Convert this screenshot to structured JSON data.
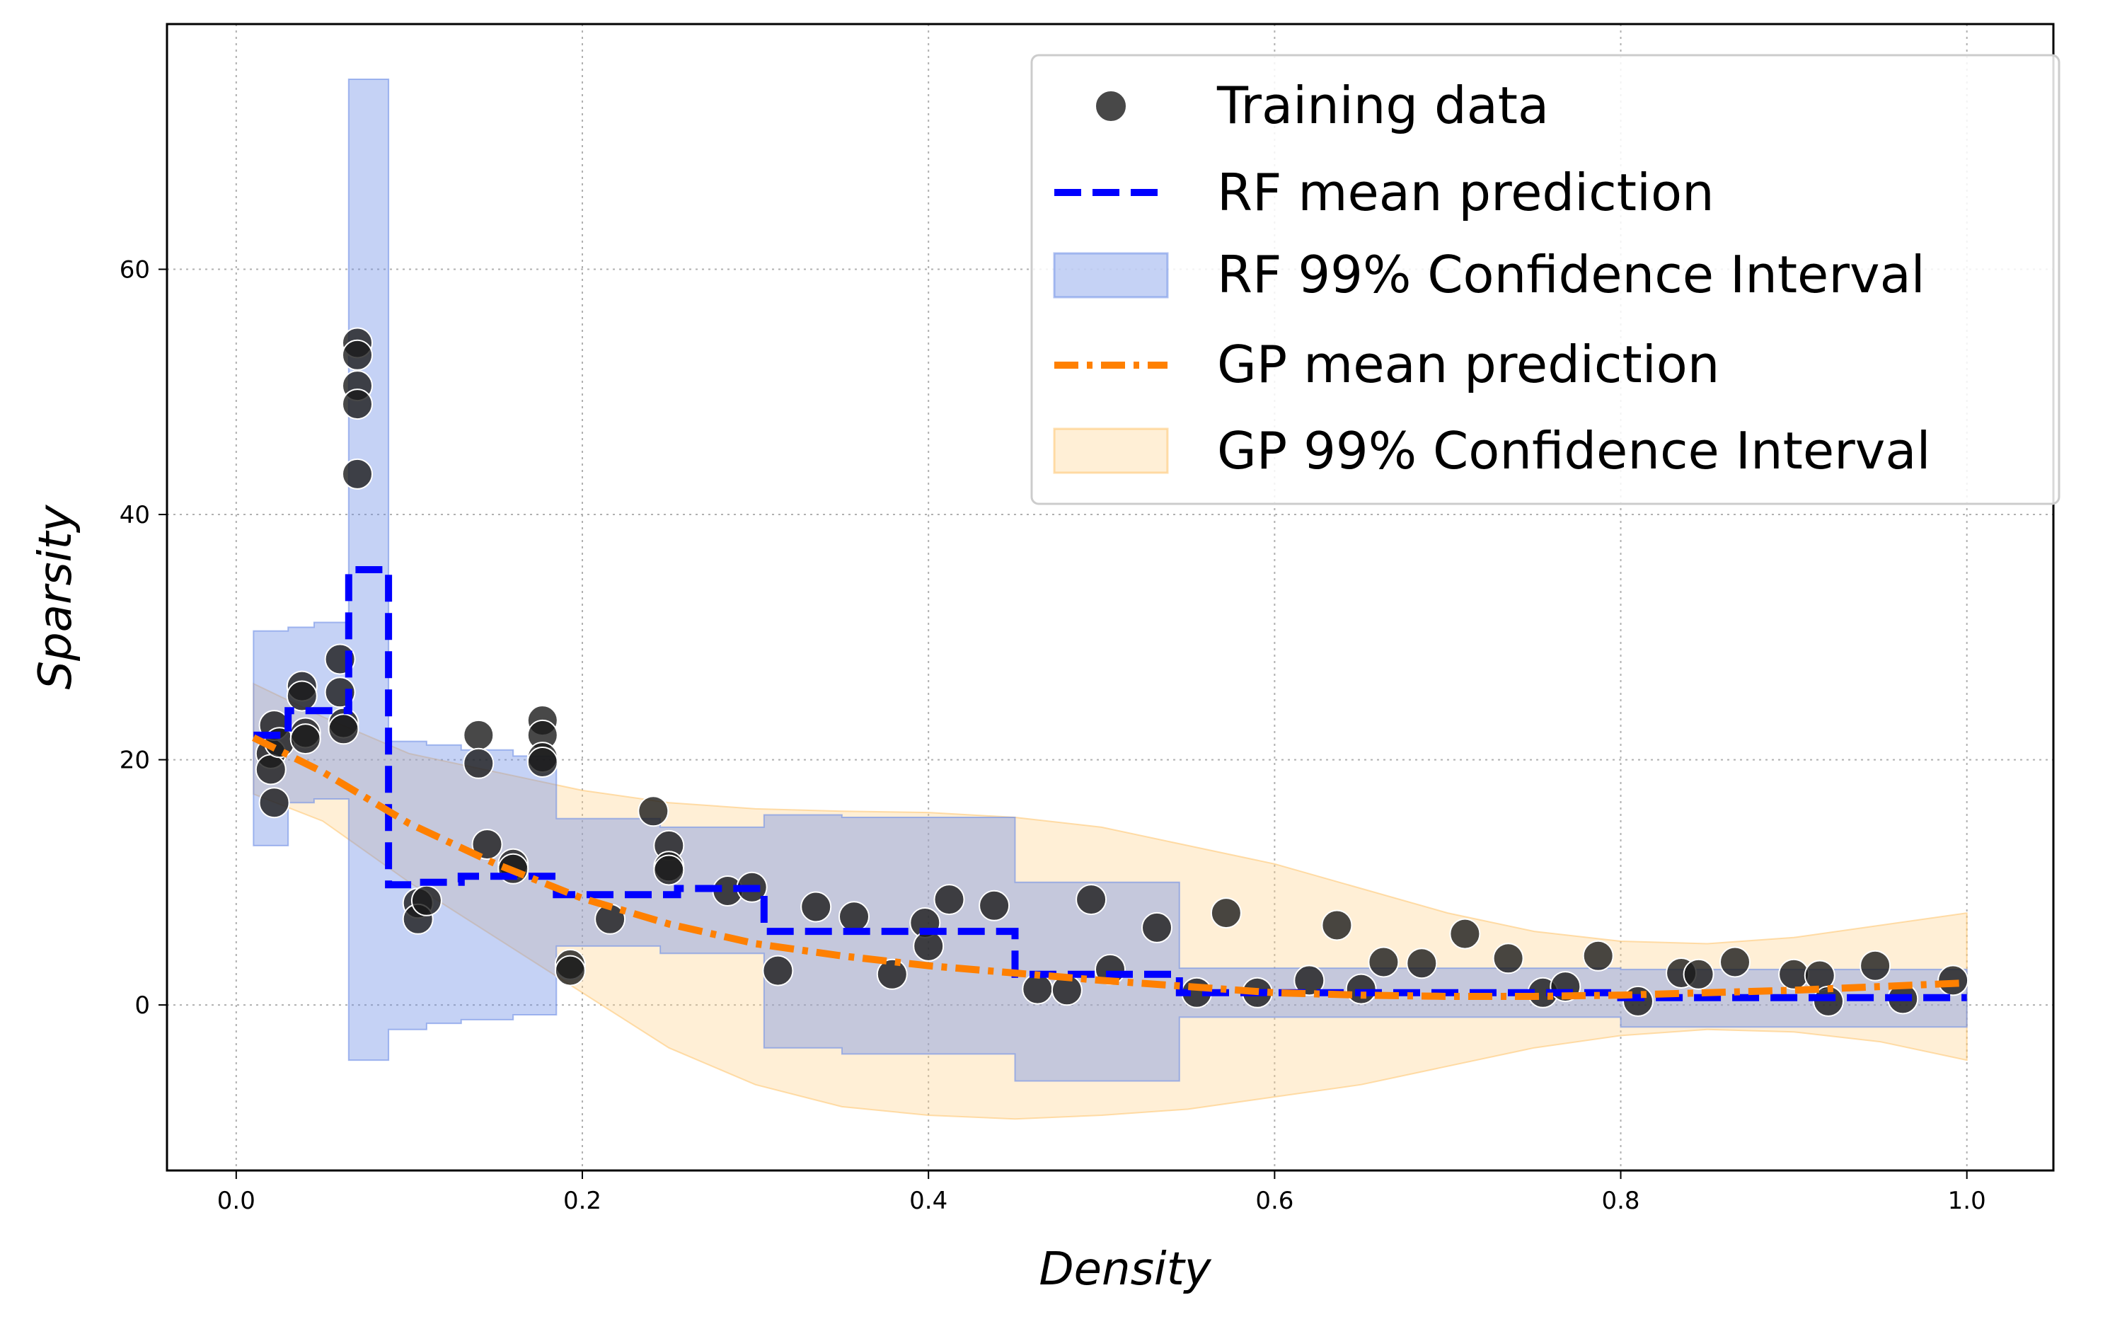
{
  "chart_data": {
    "type": "scatter",
    "xlabel": "Density",
    "ylabel": "Sparsity",
    "xlim": [
      -0.04,
      1.05
    ],
    "ylim": [
      -13.5,
      80
    ],
    "xticks": [
      "0.0",
      "0.2",
      "0.4",
      "0.6",
      "0.8",
      "1.0"
    ],
    "yticks": [
      "0",
      "20",
      "40",
      "60"
    ],
    "grid": true,
    "legend_position": "upper right",
    "legend": [
      "Training data",
      "RF mean prediction",
      "RF 99% Confidence Interval",
      "GP mean prediction",
      "GP 99% Confidence Interval"
    ],
    "colors": {
      "training_data": "#1a1a1a",
      "rf_mean": "#0000ff",
      "rf_interval": "#6f8fe6",
      "gp_mean": "#ff8000",
      "gp_interval": "#ffd28a"
    },
    "training_data": {
      "x": [
        0.02,
        0.02,
        0.022,
        0.022,
        0.025,
        0.038,
        0.038,
        0.04,
        0.04,
        0.06,
        0.06,
        0.062,
        0.062,
        0.07,
        0.07,
        0.07,
        0.07,
        0.07,
        0.105,
        0.105,
        0.11,
        0.14,
        0.14,
        0.145,
        0.16,
        0.16,
        0.177,
        0.177,
        0.177,
        0.177,
        0.193,
        0.193,
        0.216,
        0.241,
        0.25,
        0.25,
        0.25,
        0.284,
        0.298,
        0.313,
        0.335,
        0.357,
        0.379,
        0.398,
        0.4,
        0.412,
        0.438,
        0.463,
        0.48,
        0.494,
        0.505,
        0.532,
        0.555,
        0.572,
        0.59,
        0.62,
        0.636,
        0.65,
        0.663,
        0.685,
        0.71,
        0.735,
        0.755,
        0.768,
        0.787,
        0.81,
        0.835,
        0.845,
        0.866,
        0.9,
        0.915,
        0.92,
        0.947,
        0.963,
        0.992
      ],
      "y": [
        20.5,
        19.2,
        22.8,
        16.5,
        21.4,
        26.0,
        25.2,
        22.2,
        21.7,
        28.2,
        25.5,
        23.0,
        22.5,
        54.0,
        53.0,
        50.5,
        49.0,
        43.3,
        8.3,
        7.0,
        8.5,
        22.0,
        19.7,
        13.1,
        11.5,
        11.1,
        23.2,
        22.0,
        20.2,
        19.8,
        3.3,
        2.8,
        7.0,
        15.8,
        13.0,
        11.3,
        11.0,
        9.3,
        9.6,
        2.8,
        8.0,
        7.2,
        2.5,
        6.7,
        4.8,
        8.6,
        8.1,
        1.3,
        1.2,
        8.6,
        2.9,
        6.3,
        1.0,
        7.5,
        1.0,
        2.0,
        6.5,
        1.3,
        3.5,
        3.4,
        5.8,
        3.8,
        1.0,
        1.5,
        4.0,
        0.3,
        2.6,
        2.5,
        3.5,
        2.5,
        2.4,
        0.3,
        3.2,
        0.5,
        2.0
      ]
    },
    "rf_mean": {
      "x": [
        0.01,
        0.03,
        0.03,
        0.065,
        0.065,
        0.088,
        0.088,
        0.105,
        0.105,
        0.13,
        0.13,
        0.185,
        0.185,
        0.255,
        0.255,
        0.305,
        0.305,
        0.45,
        0.45,
        0.545,
        0.545,
        0.8,
        0.8,
        1.0
      ],
      "y": [
        22.0,
        22.0,
        24.0,
        24.0,
        35.5,
        35.5,
        9.8,
        9.8,
        10.0,
        10.0,
        10.5,
        10.5,
        9.0,
        9.0,
        9.5,
        9.5,
        6.0,
        6.0,
        2.5,
        2.5,
        1.0,
        1.0,
        0.6,
        0.6
      ]
    },
    "rf_interval": {
      "x": [
        0.01,
        0.03,
        0.03,
        0.045,
        0.045,
        0.065,
        0.065,
        0.088,
        0.088,
        0.11,
        0.11,
        0.13,
        0.13,
        0.16,
        0.16,
        0.185,
        0.185,
        0.245,
        0.245,
        0.305,
        0.305,
        0.35,
        0.35,
        0.45,
        0.45,
        0.545,
        0.545,
        0.8,
        0.8,
        1.0
      ],
      "low": [
        13.0,
        13.0,
        16.5,
        16.5,
        16.8,
        16.8,
        -4.5,
        -4.5,
        -2.0,
        -2.0,
        -1.5,
        -1.5,
        -1.2,
        -1.2,
        -0.8,
        -0.8,
        4.8,
        4.8,
        4.2,
        4.2,
        -3.5,
        -3.5,
        -4.0,
        -4.0,
        -6.2,
        -6.2,
        -1.0,
        -1.0,
        -1.8,
        -1.8
      ],
      "high": [
        30.5,
        30.5,
        30.8,
        30.8,
        31.2,
        31.2,
        75.5,
        75.5,
        21.5,
        21.5,
        21.2,
        21.2,
        20.8,
        20.8,
        20.3,
        20.3,
        15.2,
        15.2,
        14.5,
        14.5,
        15.5,
        15.5,
        15.3,
        15.3,
        10.0,
        10.0,
        3.0,
        3.0,
        2.9,
        2.9
      ]
    },
    "gp_mean": {
      "x": [
        0.01,
        0.05,
        0.1,
        0.15,
        0.2,
        0.25,
        0.3,
        0.35,
        0.4,
        0.45,
        0.5,
        0.55,
        0.6,
        0.65,
        0.7,
        0.75,
        0.8,
        0.85,
        0.9,
        0.95,
        1.0
      ],
      "y": [
        21.8,
        19.0,
        14.8,
        11.5,
        8.7,
        6.6,
        5.0,
        4.0,
        3.2,
        2.6,
        2.0,
        1.5,
        1.0,
        0.8,
        0.7,
        0.7,
        0.8,
        1.0,
        1.2,
        1.5,
        1.8
      ]
    },
    "gp_interval": {
      "x": [
        0.01,
        0.05,
        0.1,
        0.15,
        0.2,
        0.25,
        0.3,
        0.35,
        0.4,
        0.45,
        0.5,
        0.55,
        0.6,
        0.65,
        0.7,
        0.75,
        0.8,
        0.85,
        0.9,
        0.95,
        1.0
      ],
      "low": [
        17.2,
        15.0,
        10.0,
        5.5,
        1.0,
        -3.5,
        -6.5,
        -8.3,
        -9.0,
        -9.3,
        -9.0,
        -8.5,
        -7.5,
        -6.5,
        -5.0,
        -3.5,
        -2.5,
        -2.0,
        -2.2,
        -3.0,
        -4.5
      ],
      "high": [
        26.2,
        23.5,
        20.5,
        19.0,
        17.5,
        16.5,
        16.0,
        15.8,
        15.7,
        15.3,
        14.5,
        13.0,
        11.5,
        9.5,
        7.5,
        6.0,
        5.2,
        5.0,
        5.5,
        6.5,
        7.5
      ]
    }
  }
}
